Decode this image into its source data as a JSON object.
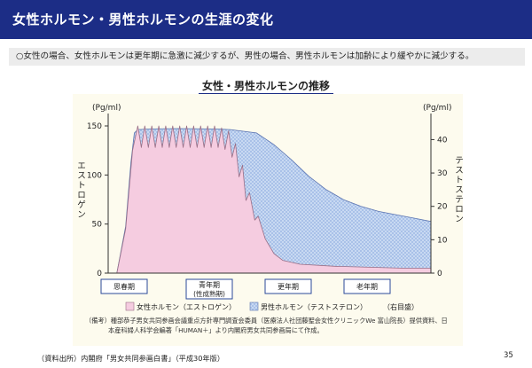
{
  "header": {
    "title": "女性ホルモン・男性ホルモンの生涯の変化"
  },
  "summary": {
    "text": "○女性の場合、女性ホルモンは更年期に急激に減少するが、男性の場合、男性ホルモンは加齢により緩やかに減少する。"
  },
  "colors": {
    "header_bg": "#1c2d86",
    "estrogen": "#f5cce0",
    "estrogen_stroke": "#9a6f86",
    "testosterone": "#c8d9f2",
    "testosterone_stroke": "#5a73b0",
    "panel": "#fdfbee"
  },
  "chart_data": {
    "type": "area",
    "title": "女性・男性ホルモンの推移",
    "y_left": {
      "unit": "(Pg/ml)",
      "label": "エストロゲン",
      "ticks": [
        "0",
        "50",
        "100",
        "150"
      ],
      "ylim": [
        0,
        150
      ]
    },
    "y_right": {
      "unit": "(Pg/ml)",
      "label": "テストステロン",
      "ticks": [
        "0",
        "10",
        "20",
        "30",
        "40"
      ],
      "ylim": [
        0,
        44.1
      ]
    },
    "x_stages": [
      {
        "label": "思春期",
        "sub": ""
      },
      {
        "label": "青年期",
        "sub": "(性成熟期)"
      },
      {
        "label": "更年期",
        "sub": ""
      },
      {
        "label": "老年期",
        "sub": ""
      }
    ],
    "series": [
      {
        "name": "女性ホルモン（エストロゲン）",
        "axis": "left",
        "points": [
          [
            0,
            0
          ],
          [
            5,
            0
          ],
          [
            10,
            45
          ],
          [
            14,
            125
          ],
          [
            17,
            150
          ],
          [
            19,
            128
          ],
          [
            21,
            150
          ],
          [
            23,
            128
          ],
          [
            25,
            150
          ],
          [
            27,
            128
          ],
          [
            29,
            150
          ],
          [
            31,
            128
          ],
          [
            33,
            150
          ],
          [
            35,
            128
          ],
          [
            37,
            150
          ],
          [
            39,
            128
          ],
          [
            41,
            150
          ],
          [
            43,
            128
          ],
          [
            45,
            150
          ],
          [
            47,
            128
          ],
          [
            49,
            150
          ],
          [
            51,
            128
          ],
          [
            53,
            150
          ],
          [
            55,
            128
          ],
          [
            57,
            150
          ],
          [
            59,
            128
          ],
          [
            61,
            150
          ],
          [
            63,
            128
          ],
          [
            65,
            148
          ],
          [
            67,
            126
          ],
          [
            69,
            145
          ],
          [
            71,
            118
          ],
          [
            73,
            132
          ],
          [
            75,
            98
          ],
          [
            77,
            110
          ],
          [
            79,
            74
          ],
          [
            81,
            82
          ],
          [
            84,
            54
          ],
          [
            86,
            58
          ],
          [
            90,
            35
          ],
          [
            95,
            20
          ],
          [
            100,
            13
          ],
          [
            110,
            9
          ],
          [
            130,
            7
          ],
          [
            150,
            6
          ],
          [
            170,
            5
          ],
          [
            185,
            5
          ]
        ]
      },
      {
        "name": "男性ホルモン（テストステロン）",
        "axis": "right",
        "points": [
          [
            0,
            0
          ],
          [
            5,
            0
          ],
          [
            10,
            14
          ],
          [
            13,
            33
          ],
          [
            15,
            42
          ],
          [
            17,
            43
          ],
          [
            25,
            43.2
          ],
          [
            40,
            43.3
          ],
          [
            60,
            43.2
          ],
          [
            70,
            43
          ],
          [
            85,
            42
          ],
          [
            95,
            38.5
          ],
          [
            105,
            34
          ],
          [
            115,
            29
          ],
          [
            125,
            25
          ],
          [
            135,
            22
          ],
          [
            145,
            20
          ],
          [
            155,
            18.5
          ],
          [
            165,
            17.5
          ],
          [
            175,
            16.5
          ],
          [
            185,
            15.5
          ]
        ]
      }
    ],
    "legend": {
      "estrogen": "女性ホルモン（エストロゲン）",
      "testosterone": "男性ホルモン（テストステロン）",
      "right_note": "（右目盛）"
    }
  },
  "notes": {
    "line1": "（備考）種部恭子男女共同参画会議重点方針専門調査会委員（医療法人社団藤聖会女性クリニックWe 富山院長）提供資料、日",
    "line2": "本産科婦人科学会編著「HUMAN＋」より内閣府男女共同参画局にて作成。"
  },
  "source": "（資料出所）内閣府「男女共同参画白書」（平成30年版）",
  "page_number": "35"
}
